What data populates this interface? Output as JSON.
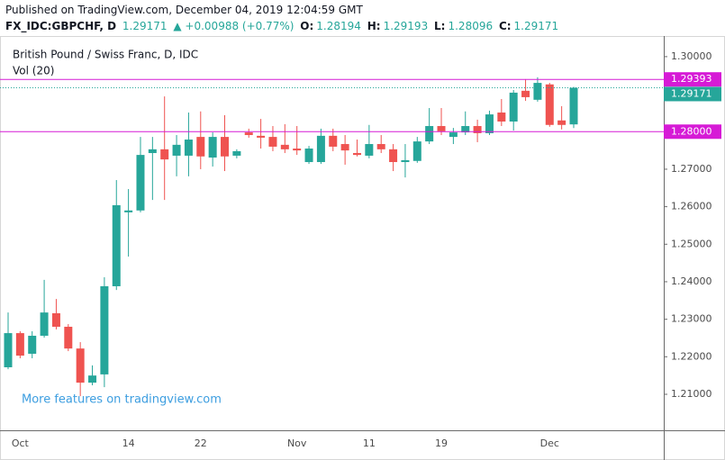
{
  "header": {
    "published": "Published on TradingView.com, December 04, 2019 12:04:59 GMT",
    "symbol": "FX_IDC:GBPCHF, D",
    "change": "▲ +0.00988 (+0.77%)",
    "open_label": "O:",
    "high_label": "H:",
    "low_label": "L:",
    "close_label": "C:"
  },
  "chart_data": {
    "type": "candlestick",
    "title": "British Pound / Swiss Franc, D, IDC",
    "subtitle": "Vol (20)",
    "watermark": "More features on tradingview.com",
    "up_color": "#26a69a",
    "down_color": "#ef5350",
    "level_color": "#d61ad6",
    "categories": [
      null,
      "Oct",
      null,
      null,
      null,
      null,
      null,
      null,
      null,
      null,
      "14",
      null,
      null,
      null,
      null,
      null,
      "22",
      null,
      null,
      null,
      null,
      null,
      null,
      null,
      "Nov",
      null,
      null,
      null,
      null,
      null,
      "11",
      null,
      null,
      null,
      null,
      null,
      "19",
      null,
      null,
      null,
      null,
      null,
      null,
      null,
      null,
      "Dec",
      null,
      null
    ],
    "open": [
      1.2172,
      1.2263,
      1.2208,
      1.2256,
      1.2316,
      1.228,
      1.2222,
      1.2131,
      1.2153,
      1.2388,
      1.2585,
      1.259,
      1.2743,
      1.2753,
      1.2736,
      1.2736,
      1.2786,
      1.2731,
      1.2786,
      1.2736,
      1.2798,
      1.2789,
      1.2786,
      1.2765,
      1.2755,
      1.2719,
      1.2719,
      1.2789,
      1.2767,
      1.2743,
      1.2736,
      1.2767,
      1.2753,
      1.2719,
      1.2722,
      1.2774,
      1.2815,
      1.2786,
      1.2798,
      1.2815,
      1.2796,
      1.2851,
      1.2827,
      1.2909,
      1.2885,
      1.2926,
      1.283,
      1.28194
    ],
    "high": [
      1.2318,
      1.2268,
      1.2268,
      1.2405,
      1.2354,
      1.2287,
      1.2239,
      1.2177,
      1.2412,
      1.2671,
      1.2647,
      1.2786,
      1.2786,
      1.2894,
      1.2791,
      1.2851,
      1.2854,
      1.2798,
      1.2844,
      1.2753,
      1.2808,
      1.2834,
      1.2815,
      1.282,
      1.2815,
      1.2762,
      1.2808,
      1.2808,
      1.2791,
      1.2779,
      1.2818,
      1.2791,
      1.2767,
      1.2767,
      1.2786,
      1.2863,
      1.2863,
      1.281,
      1.2854,
      1.2832,
      1.2856,
      1.2887,
      1.2911,
      1.294,
      1.2945,
      1.293,
      1.2868,
      1.29193
    ],
    "low": [
      1.2167,
      1.2196,
      1.2196,
      1.2251,
      1.2273,
      1.2215,
      1.2095,
      1.2124,
      1.2119,
      1.2378,
      1.2467,
      1.2585,
      1.2618,
      1.2618,
      1.2681,
      1.2681,
      1.27,
      1.2707,
      1.2695,
      1.2729,
      1.2784,
      1.2755,
      1.2748,
      1.2743,
      1.2738,
      1.2714,
      1.2714,
      1.2748,
      1.2712,
      1.2734,
      1.2729,
      1.2743,
      1.2695,
      1.2678,
      1.2717,
      1.2767,
      1.2791,
      1.2767,
      1.2791,
      1.2772,
      1.2791,
      1.2815,
      1.2803,
      1.2882,
      1.288,
      1.2813,
      1.2806,
      1.28096
    ],
    "close": [
      1.2263,
      1.2203,
      1.2256,
      1.2318,
      1.228,
      1.2222,
      1.2131,
      1.215,
      1.2388,
      1.2604,
      1.259,
      1.2738,
      1.2753,
      1.2726,
      1.2765,
      1.2779,
      1.2734,
      1.2786,
      1.2734,
      1.2748,
      1.2791,
      1.2784,
      1.276,
      1.2753,
      1.275,
      1.2755,
      1.2789,
      1.276,
      1.275,
      1.2738,
      1.2767,
      1.2753,
      1.2719,
      1.2724,
      1.2774,
      1.2815,
      1.2801,
      1.2798,
      1.2815,
      1.2796,
      1.2846,
      1.2827,
      1.2904,
      1.2892,
      1.293,
      1.2818,
      1.2818,
      1.29171
    ],
    "levels": [
      1.29393,
      {
        "value": 1.28,
        "label": "1.28000"
      }
    ],
    "ylim": [
      1.2004,
      1.3055
    ],
    "yticks": [
      {
        "value": 1.21,
        "label": "1.21000"
      },
      {
        "value": 1.22,
        "label": "1.22000"
      },
      {
        "value": 1.23,
        "label": "1.23000"
      },
      {
        "value": 1.24,
        "label": "1.24000"
      },
      {
        "value": 1.25,
        "label": "1.25000"
      },
      {
        "value": 1.26,
        "label": "1.26000"
      },
      {
        "value": 1.27,
        "label": "1.27000"
      },
      {
        "value": 1.3,
        "label": "1.30000"
      }
    ]
  }
}
